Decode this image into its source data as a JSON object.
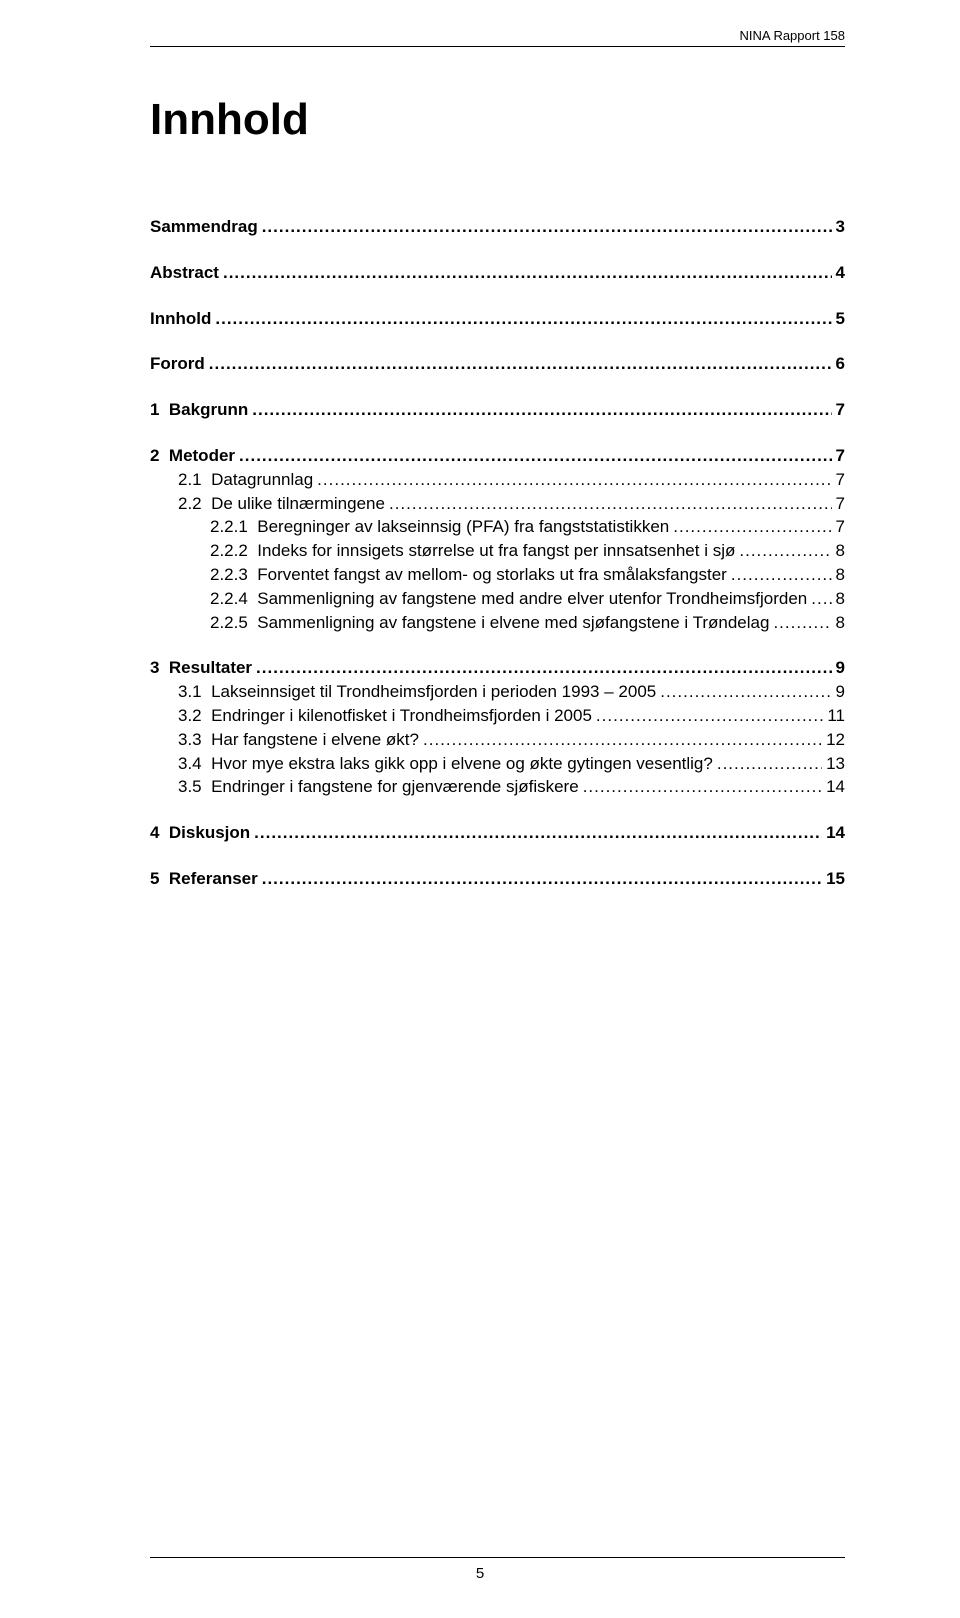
{
  "header": {
    "label": "NINA Rapport 158"
  },
  "title": "Innhold",
  "footer": {
    "page": "5"
  },
  "toc": [
    {
      "group": [
        {
          "bold": true,
          "num": "",
          "label": "Sammendrag",
          "page": "3",
          "indent": 0
        }
      ]
    },
    {
      "group": [
        {
          "bold": true,
          "num": "",
          "label": "Abstract",
          "page": "4",
          "indent": 0
        }
      ]
    },
    {
      "group": [
        {
          "bold": true,
          "num": "",
          "label": "Innhold",
          "page": "5",
          "indent": 0
        }
      ]
    },
    {
      "group": [
        {
          "bold": true,
          "num": "",
          "label": "Forord",
          "page": "6",
          "indent": 0
        }
      ]
    },
    {
      "group": [
        {
          "bold": true,
          "num": "1",
          "label": "Bakgrunn",
          "page": "7",
          "indent": 0
        }
      ]
    },
    {
      "group": [
        {
          "bold": true,
          "num": "2",
          "label": "Metoder",
          "page": "7",
          "indent": 0
        },
        {
          "bold": false,
          "num": "2.1",
          "label": "Datagrunnlag",
          "page": "7",
          "indent": 1
        },
        {
          "bold": false,
          "num": "2.2",
          "label": "De ulike tilnærmingene",
          "page": "7",
          "indent": 1
        },
        {
          "bold": false,
          "num": "2.2.1",
          "label": "Beregninger av lakseinnsig (PFA) fra fangststatistikken",
          "page": "7",
          "indent": 2
        },
        {
          "bold": false,
          "num": "2.2.2",
          "label": "Indeks for innsigets størrelse ut fra fangst per innsatsenhet i sjø",
          "page": "8",
          "indent": 2
        },
        {
          "bold": false,
          "num": "2.2.3",
          "label": "Forventet fangst av mellom- og storlaks ut fra smålaksfangster",
          "page": "8",
          "indent": 2
        },
        {
          "bold": false,
          "num": "2.2.4",
          "label": "Sammenligning av fangstene med andre elver utenfor Trondheimsfjorden",
          "page": "8",
          "indent": 2
        },
        {
          "bold": false,
          "num": "2.2.5",
          "label": "Sammenligning av fangstene i elvene med sjøfangstene i Trøndelag",
          "page": "8",
          "indent": 2
        }
      ]
    },
    {
      "group": [
        {
          "bold": true,
          "num": "3",
          "label": "Resultater",
          "page": "9",
          "indent": 0
        },
        {
          "bold": false,
          "num": "3.1",
          "label": "Lakseinnsiget til Trondheimsfjorden i perioden 1993 – 2005",
          "page": "9",
          "indent": 1
        },
        {
          "bold": false,
          "num": "3.2",
          "label": "Endringer i kilenotfisket i Trondheimsfjorden i 2005",
          "page": "11",
          "indent": 1
        },
        {
          "bold": false,
          "num": "3.3",
          "label": "Har fangstene i elvene økt?",
          "page": "12",
          "indent": 1
        },
        {
          "bold": false,
          "num": "3.4",
          "label": "Hvor mye ekstra laks gikk opp i elvene og økte gytingen vesentlig?",
          "page": "13",
          "indent": 1
        },
        {
          "bold": false,
          "num": "3.5",
          "label": "Endringer i fangstene for gjenværende sjøfiskere",
          "page": "14",
          "indent": 1
        }
      ]
    },
    {
      "group": [
        {
          "bold": true,
          "num": "4",
          "label": "Diskusjon",
          "page": "14",
          "indent": 0
        }
      ]
    },
    {
      "group": [
        {
          "bold": true,
          "num": "5",
          "label": "Referanser",
          "page": "15",
          "indent": 0
        }
      ]
    }
  ]
}
